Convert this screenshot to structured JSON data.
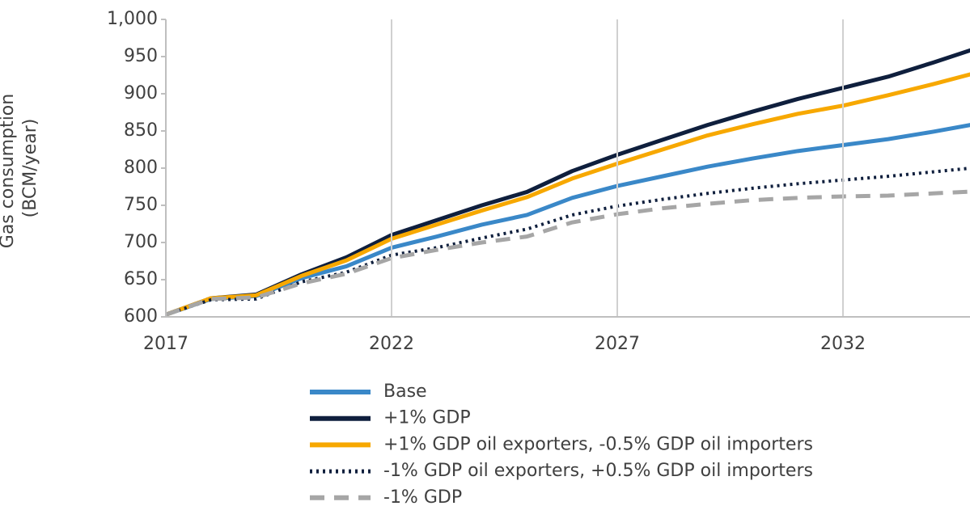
{
  "chart_data": {
    "type": "line",
    "ylabel": [
      "Gas consumption",
      "(BCM/year)"
    ],
    "x": [
      2017,
      2018,
      2019,
      2020,
      2021,
      2022,
      2023,
      2024,
      2025,
      2026,
      2027,
      2028,
      2029,
      2030,
      2031,
      2032,
      2033,
      2034,
      2035
    ],
    "series": [
      {
        "name": "Base",
        "color": "#3a88c8",
        "style": "solid",
        "values": [
          603,
          624,
          628,
          652,
          668,
          693,
          708,
          724,
          737,
          760,
          776,
          789,
          802,
          813,
          823,
          831,
          839,
          849,
          860
        ]
      },
      {
        "name": "+1% GDP",
        "color": "#0f1f3d",
        "style": "solid",
        "values": [
          603,
          625,
          630,
          657,
          680,
          710,
          730,
          750,
          768,
          796,
          818,
          838,
          858,
          876,
          893,
          908,
          923,
          942,
          962
        ]
      },
      {
        "name": "+1% GDP oil exporters, -0.5% GDP oil importers",
        "color": "#f7a800",
        "style": "solid",
        "values": [
          603,
          625,
          629,
          655,
          676,
          705,
          724,
          743,
          761,
          786,
          806,
          825,
          844,
          859,
          873,
          884,
          898,
          913,
          929
        ]
      },
      {
        "name": "-1% GDP oil exporters, +0.5% GDP oil importers",
        "color": "#0f1f3d",
        "style": "dotted",
        "values": [
          603,
          623,
          624,
          647,
          660,
          683,
          693,
          706,
          718,
          737,
          749,
          758,
          766,
          773,
          779,
          784,
          789,
          795,
          801
        ]
      },
      {
        "name": "-1% GDP",
        "color": "#a6a6a6",
        "style": "dashed",
        "values": [
          603,
          624,
          626,
          645,
          658,
          679,
          690,
          700,
          708,
          727,
          738,
          746,
          752,
          757,
          760,
          762,
          763,
          766,
          769
        ]
      }
    ],
    "xlim": [
      2017,
      2034.8
    ],
    "xticks": [
      2017,
      2022,
      2027,
      2032
    ],
    "ylim": [
      600,
      1000
    ],
    "yticks": [
      600,
      650,
      700,
      750,
      800,
      850,
      900,
      950,
      {
        "value": 1000,
        "label": "1,000"
      }
    ],
    "grid": "x",
    "legend": "bottom"
  }
}
